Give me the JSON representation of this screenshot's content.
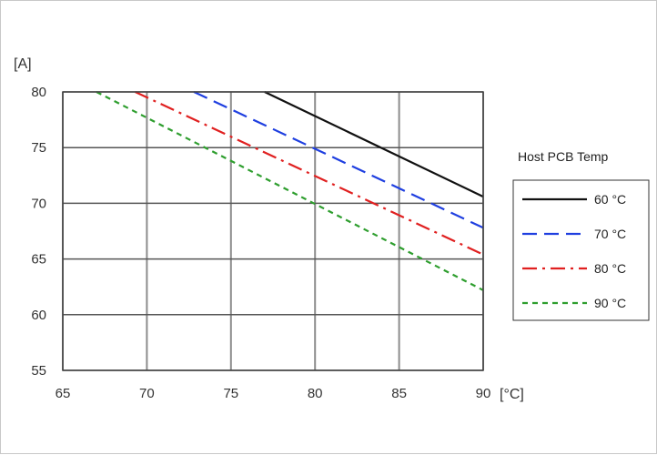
{
  "chart_data": {
    "type": "line",
    "title": "",
    "xlabel": "[°C]",
    "ylabel": "[A]",
    "xlim": [
      65,
      90
    ],
    "ylim": [
      55,
      80
    ],
    "xticks": [
      65,
      70,
      75,
      80,
      85,
      90
    ],
    "yticks": [
      55,
      60,
      65,
      70,
      75,
      80
    ],
    "grid": true,
    "legend_title": "Host PCB Temp",
    "legend_position": "right",
    "series": [
      {
        "name": "60 °C",
        "color": "#111111",
        "dash": "solid",
        "points": [
          [
            77.0,
            80.0
          ],
          [
            90.0,
            70.6
          ]
        ]
      },
      {
        "name": "70 °C",
        "color": "#1f3fe0",
        "dash": "dash",
        "points": [
          [
            72.8,
            80.0
          ],
          [
            90.0,
            67.8
          ]
        ]
      },
      {
        "name": "80 °C",
        "color": "#e02020",
        "dash": "dashdot",
        "points": [
          [
            69.3,
            80.0
          ],
          [
            90.0,
            65.4
          ]
        ]
      },
      {
        "name": "90 °C",
        "color": "#2e9e2e",
        "dash": "dot",
        "points": [
          [
            67.0,
            80.0
          ],
          [
            90.0,
            62.2
          ]
        ]
      }
    ]
  }
}
